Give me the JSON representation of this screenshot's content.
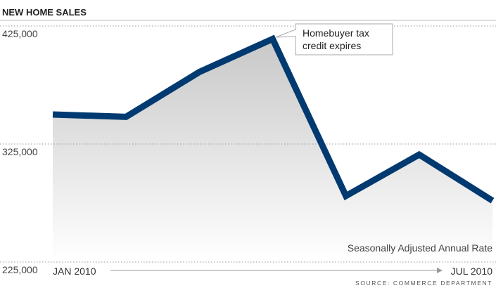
{
  "chart_data": {
    "type": "line",
    "title": "NEW HOME SALES",
    "subtitle": "Seasonally Adjusted Annual Rate",
    "source": "SOURCE: COMMERCE DEPARTMENT",
    "annotation": [
      "Homebuyer tax",
      "credit expires"
    ],
    "categories": [
      "JAN 2010",
      null,
      null,
      null,
      null,
      null,
      "JUL 2010"
    ],
    "series": [
      {
        "name": "New home sales",
        "color": "#003a70",
        "values": [
          350000,
          348000,
          386000,
          414000,
          281000,
          316000,
          277000
        ]
      }
    ],
    "ylim": [
      225000,
      425000
    ],
    "yticks": [
      {
        "value": 225000,
        "label": "225,000"
      },
      {
        "value": 325000,
        "label": "325,000"
      },
      {
        "value": 425000,
        "label": "425,000"
      }
    ],
    "grid": true
  }
}
